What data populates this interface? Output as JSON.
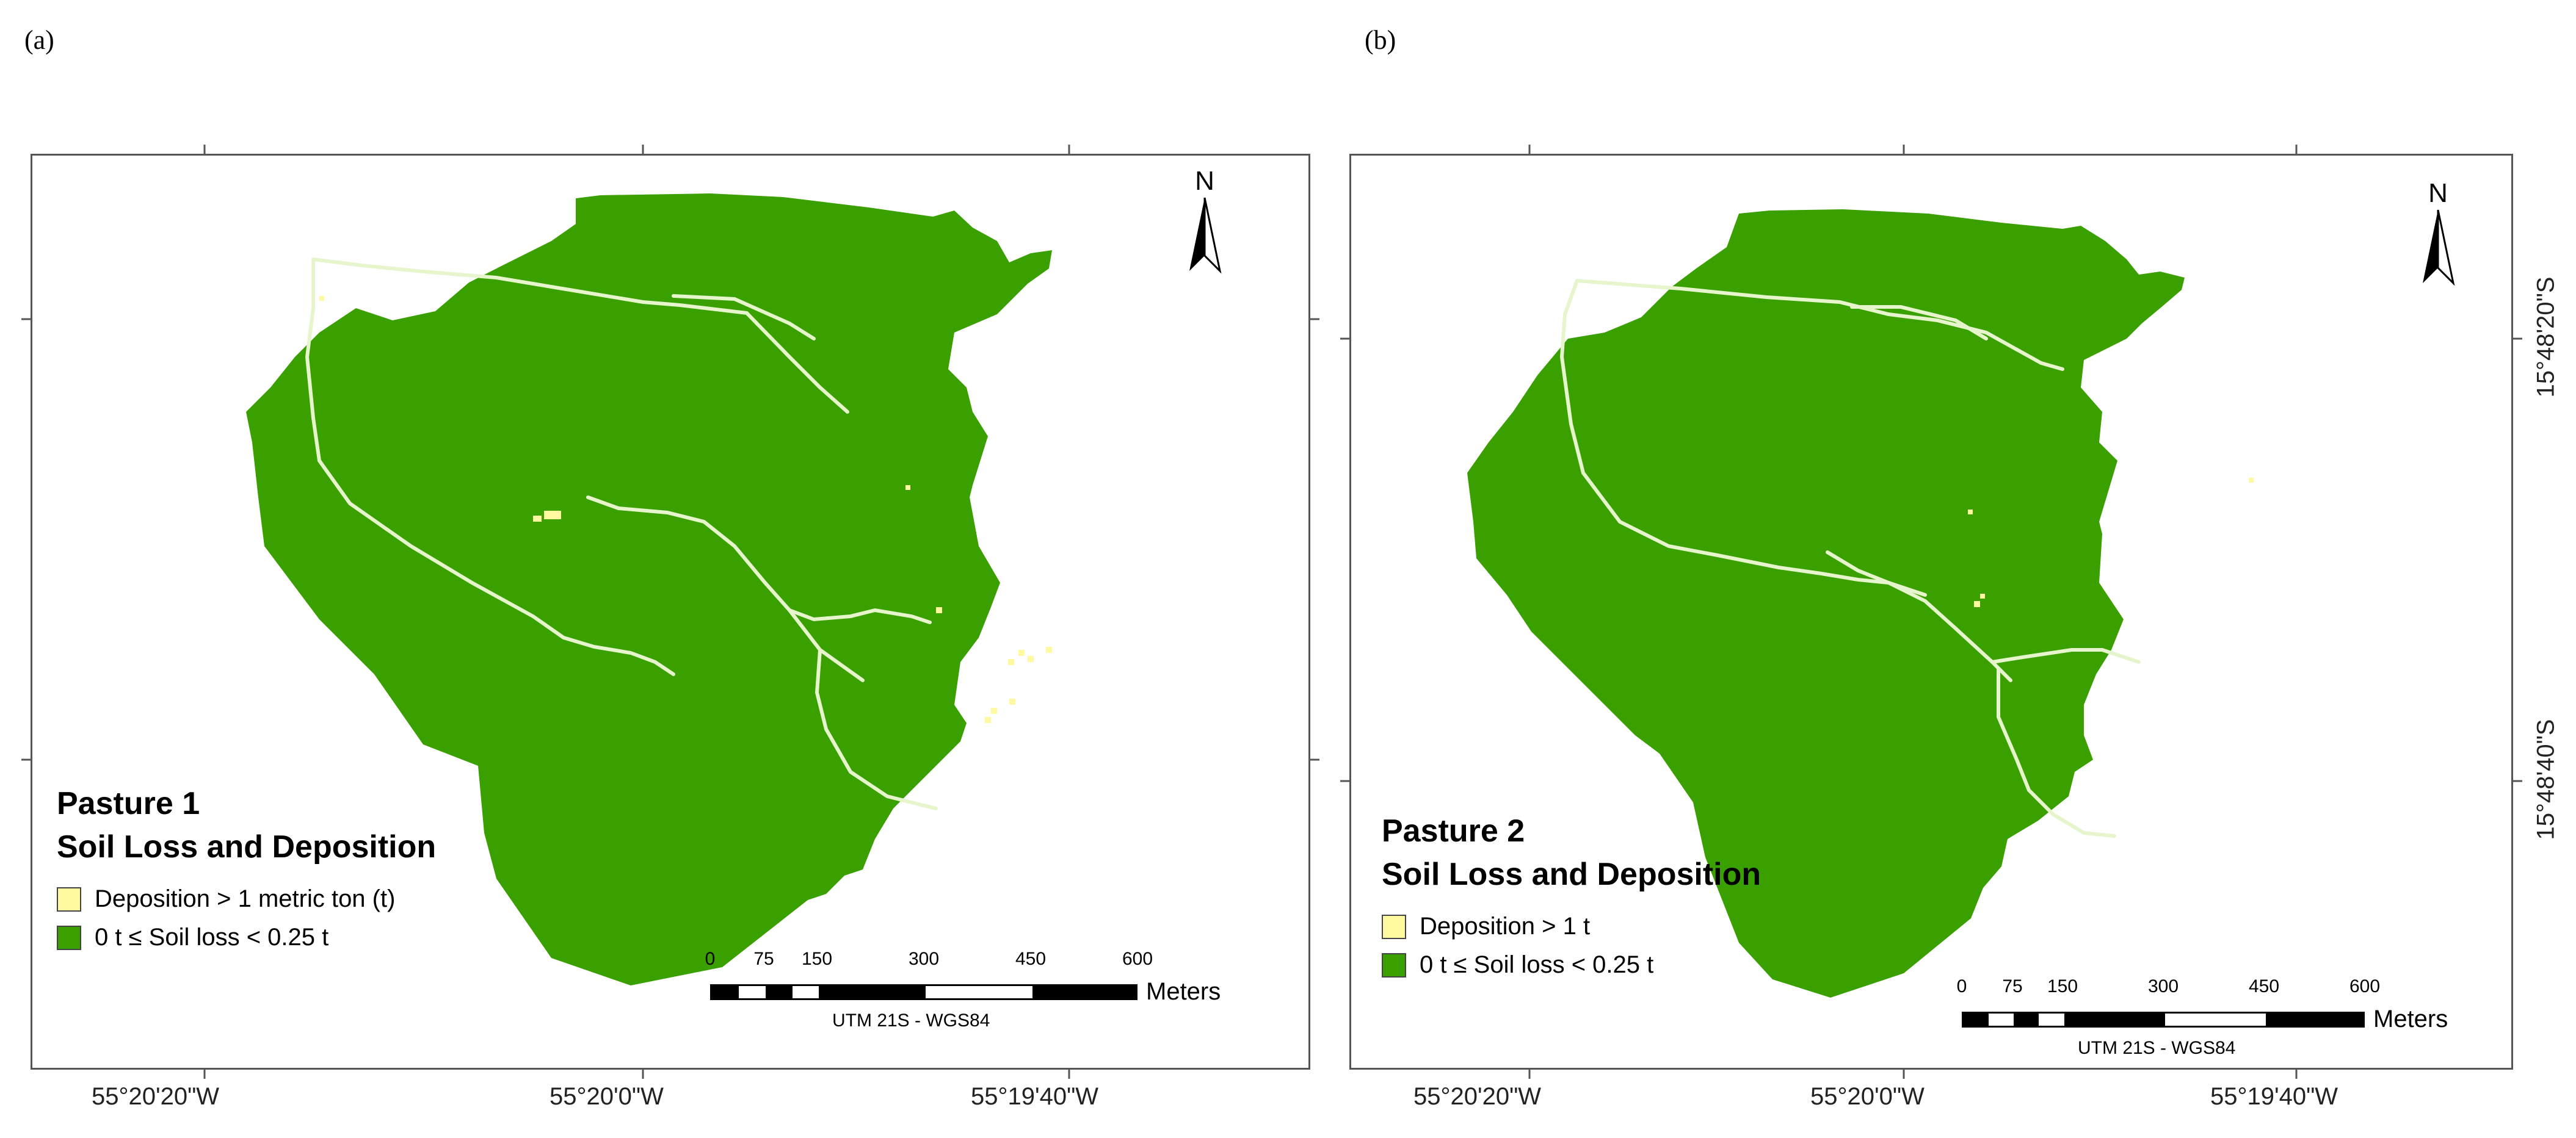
{
  "colors": {
    "soil_loss": "#3aa000",
    "deposition": "#fffaa0",
    "stream": "#e6f5cc",
    "frame": "#555555"
  },
  "panels": [
    {
      "tag": "(a)",
      "legend": {
        "title": "Pasture 1",
        "subtitle": "Soil Loss and Deposition",
        "items": [
          {
            "label": "Deposition > 1 metric ton (t)",
            "color": "#fffaa0"
          },
          {
            "label": "0 t ≤ Soil loss < 0.25 t",
            "color": "#3aa000"
          }
        ]
      },
      "lon_labels": [
        "55°20'20\"W",
        "55°20'0\"W",
        "55°19'40\"W"
      ],
      "lat_labels": [],
      "north": "N",
      "scale": {
        "ticks": [
          "0",
          "75",
          "150",
          "300",
          "450",
          "600"
        ],
        "unit": "Meters",
        "projection": "UTM 21S - WGS84"
      }
    },
    {
      "tag": "(b)",
      "legend": {
        "title": "Pasture 2",
        "subtitle": "Soil Loss and Deposition",
        "items": [
          {
            "label": "Deposition > 1 t",
            "color": "#fffaa0"
          },
          {
            "label": "0 t ≤ Soil loss < 0.25 t",
            "color": "#3aa000"
          }
        ]
      },
      "lon_labels": [
        "55°20'20\"W",
        "55°20'0\"W",
        "55°19'40\"W"
      ],
      "lat_labels": [
        "15°48'20\"S",
        "15°48'40\"S"
      ],
      "north": "N",
      "scale": {
        "ticks": [
          "0",
          "75",
          "150",
          "300",
          "450",
          "600"
        ],
        "unit": "Meters",
        "projection": "UTM 21S - WGS84"
      }
    }
  ]
}
